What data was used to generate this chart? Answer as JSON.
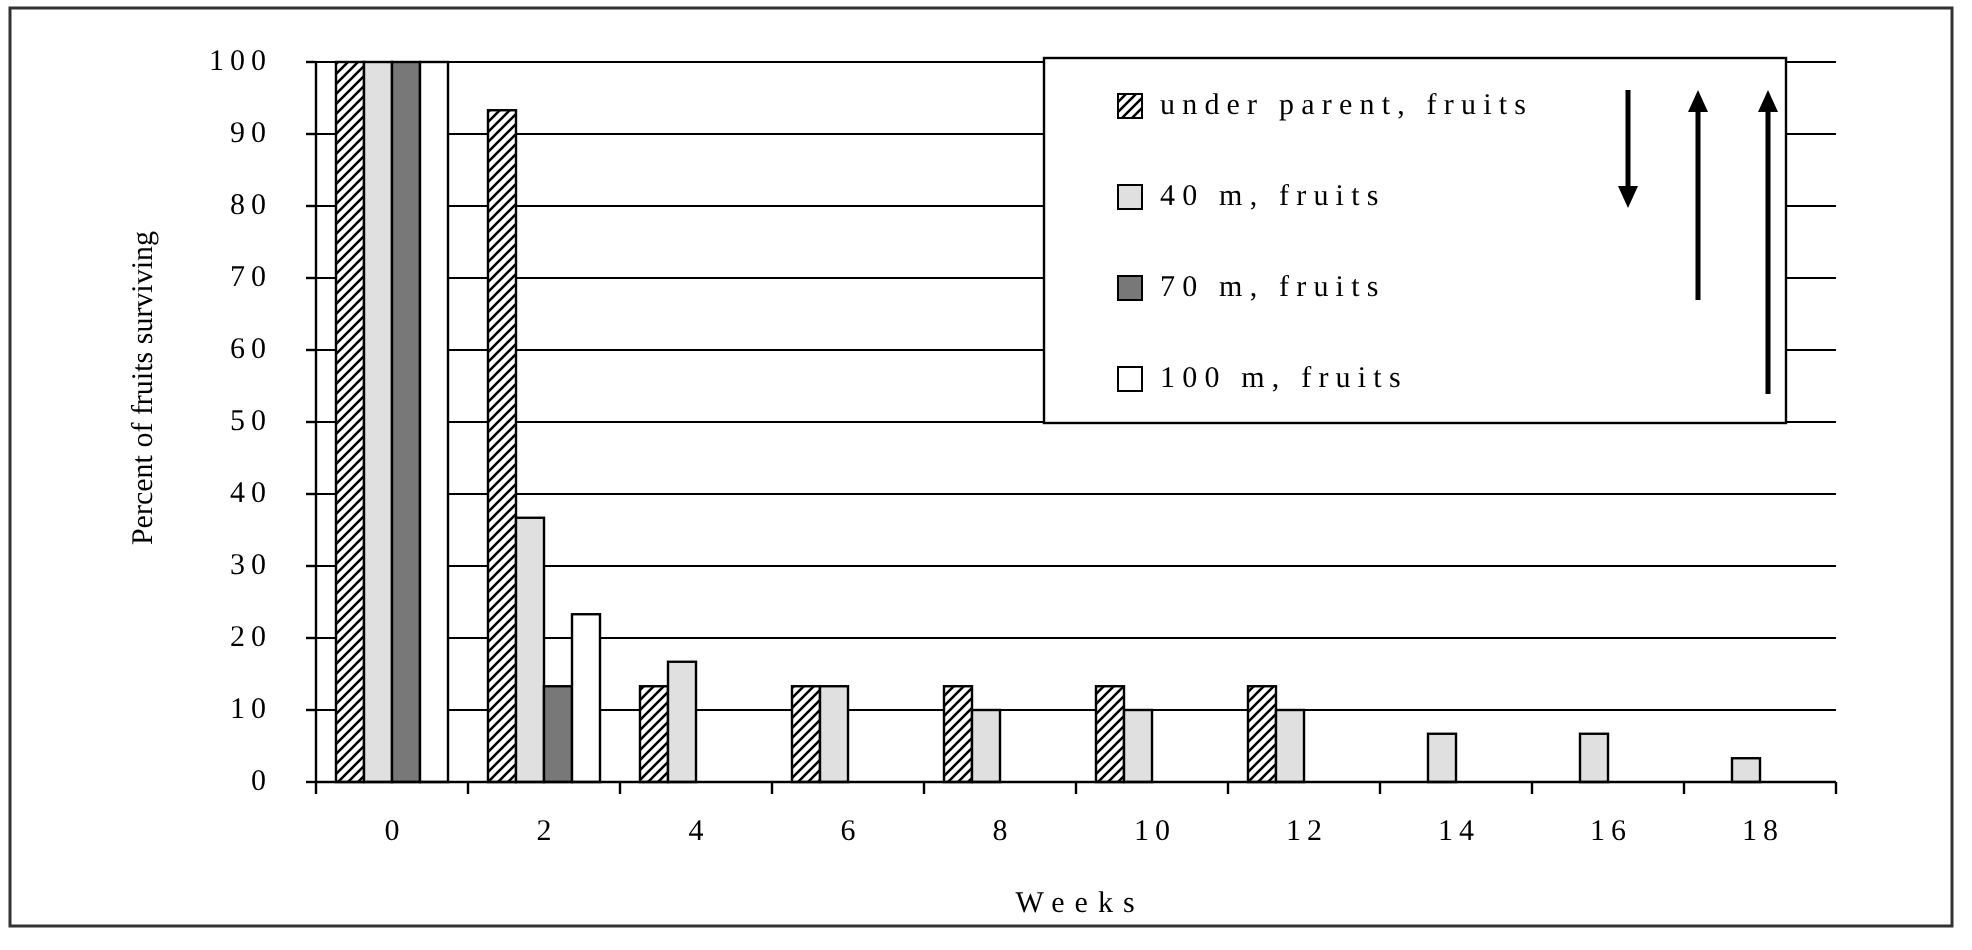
{
  "chart_data": {
    "type": "bar",
    "xlabel": "Weeks",
    "ylabel": "Percent of fruits surviving",
    "categories": [
      "0",
      "2",
      "4",
      "6",
      "8",
      "10",
      "12",
      "14",
      "16",
      "18"
    ],
    "series": [
      {
        "name": "under parent, fruits",
        "color": "#000000",
        "values": [
          100,
          93.3,
          13.3,
          13.3,
          13.3,
          13.3,
          13.3,
          null,
          null,
          null
        ]
      },
      {
        "name": "40 m, fruits",
        "color": "#e0e0e0",
        "values": [
          100,
          36.7,
          16.7,
          13.3,
          10,
          10,
          10,
          6.7,
          6.7,
          3.3
        ]
      },
      {
        "name": "70 m, fruits",
        "color": "#787878",
        "values": [
          100,
          13.3,
          null,
          null,
          null,
          null,
          null,
          null,
          null,
          null
        ]
      },
      {
        "name": "100 m, fruits",
        "color": "#ffffff",
        "values": [
          100,
          23.3,
          null,
          null,
          null,
          null,
          null,
          null,
          null,
          null
        ]
      }
    ],
    "ylim": [
      0,
      100
    ],
    "yticks": [
      0,
      10,
      20,
      30,
      40,
      50,
      60,
      70,
      80,
      90,
      100
    ],
    "grid": "y",
    "legend": "top right"
  }
}
